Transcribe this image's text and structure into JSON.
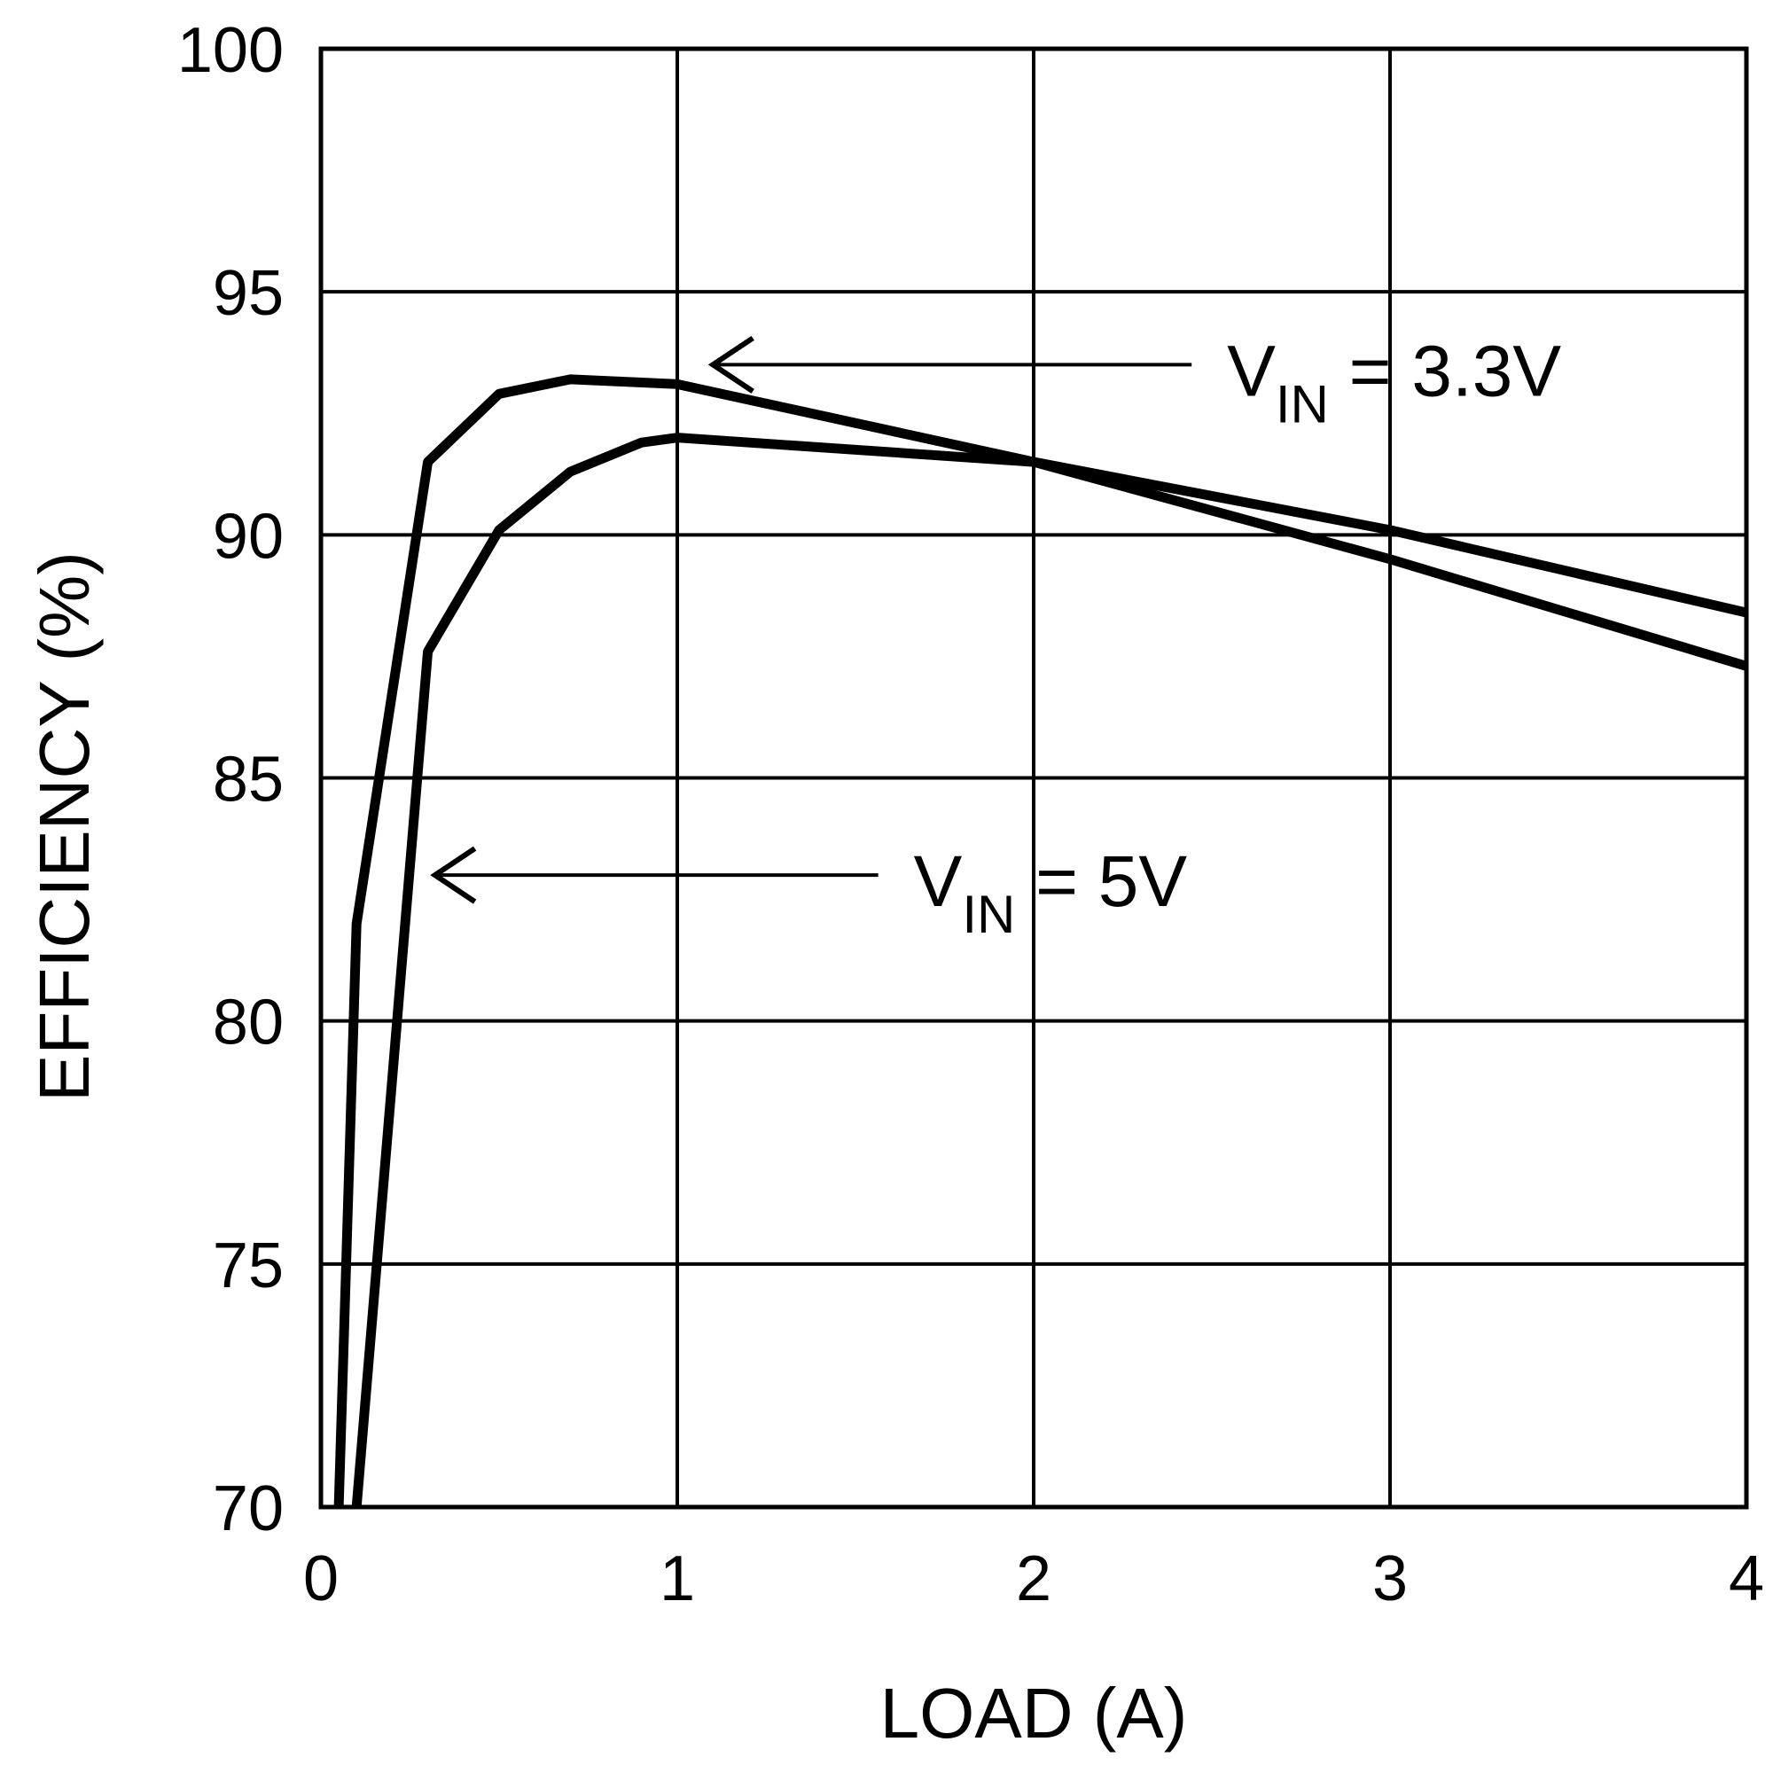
{
  "chart_data": {
    "type": "line",
    "xlabel": "LOAD (A)",
    "ylabel": "EFFICIENCY (%)",
    "xlim": [
      0,
      4
    ],
    "ylim": [
      70,
      100
    ],
    "xticks": [
      0,
      1,
      2,
      3,
      4
    ],
    "yticks": [
      70,
      75,
      80,
      85,
      90,
      95,
      100
    ],
    "grid": true,
    "series": [
      {
        "name": "VIN = 3.3V",
        "x": [
          0.05,
          0.1,
          0.3,
          0.5,
          0.7,
          1.0,
          2.0,
          3.0,
          4.0
        ],
        "y": [
          70.0,
          82.0,
          91.5,
          92.9,
          93.2,
          93.1,
          91.5,
          89.5,
          87.3
        ]
      },
      {
        "name": "VIN = 5V",
        "x": [
          0.1,
          0.3,
          0.5,
          0.7,
          0.9,
          1.0,
          2.0,
          3.0,
          4.0
        ],
        "y": [
          70.0,
          87.6,
          90.1,
          91.3,
          91.9,
          92.0,
          91.5,
          90.1,
          88.4
        ]
      }
    ],
    "annotations": [
      {
        "series": "VIN = 3.3V",
        "main": "V",
        "sub": "IN",
        "rest": " = 3.3V",
        "arrow_x": 1.1,
        "arrow_y": 93.5
      },
      {
        "series": "VIN = 5V",
        "main": "V",
        "sub": "IN",
        "rest": " = 5V",
        "arrow_x": 0.32,
        "arrow_y": 83.0
      }
    ]
  }
}
